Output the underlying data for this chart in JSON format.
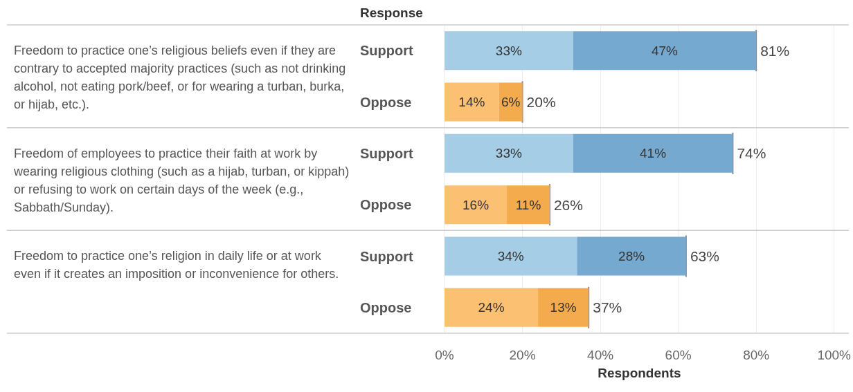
{
  "chart_data": {
    "type": "bar",
    "orientation": "horizontal",
    "stacked": true,
    "ylabel": "Response",
    "xlabel": "Respondents",
    "categories": [
      "Support",
      "Oppose",
      "Support",
      "Oppose",
      "Support",
      "Oppose"
    ],
    "series": [
      {
        "colors": [
          "#a6cde6",
          "#fbc072",
          "#a6cde6",
          "#fbc072",
          "#a6cde6",
          "#fbc072"
        ],
        "values": [
          33,
          14,
          33,
          16,
          34,
          24
        ],
        "value_labels": [
          "33%",
          "14%",
          "33%",
          "16%",
          "34%",
          "24%"
        ]
      },
      {
        "colors": [
          "#76a9d0",
          "#f4ab4d",
          "#76a9d0",
          "#f4ab4d",
          "#76a9d0",
          "#f4ab4d"
        ],
        "values": [
          47,
          6,
          41,
          11,
          28,
          13
        ],
        "value_labels": [
          "47%",
          "6%",
          "41%",
          "11%",
          "28%",
          "13%"
        ]
      }
    ],
    "totals": [
      "81%",
      "20%",
      "74%",
      "26%",
      "63%",
      "37%"
    ],
    "annotations": [
      "Freedom to practice one’s religious beliefs even if they are contrary to accepted majority practices (such as not drinking alcohol, not eating pork/beef, or for wearing a turban, burka, or hijab, etc.).",
      "Freedom of employees to practice their faith at work by wearing religious clothing (such as a hijab, turban, or kippah) or refusing to work on certain days of the week (e.g., Sabbath/Sunday).",
      "Freedom to practice one’s religion in daily life or at work even if it creates an imposition or inconvenience for others."
    ],
    "xlim": [
      0,
      100
    ],
    "xticks": [
      {
        "value": 0,
        "label": "0%"
      },
      {
        "value": 20,
        "label": "20%"
      },
      {
        "value": 40,
        "label": "40%"
      },
      {
        "value": 60,
        "label": "60%"
      },
      {
        "value": 80,
        "label": "80%"
      },
      {
        "value": 100,
        "label": "100%"
      }
    ],
    "grid": "x"
  }
}
